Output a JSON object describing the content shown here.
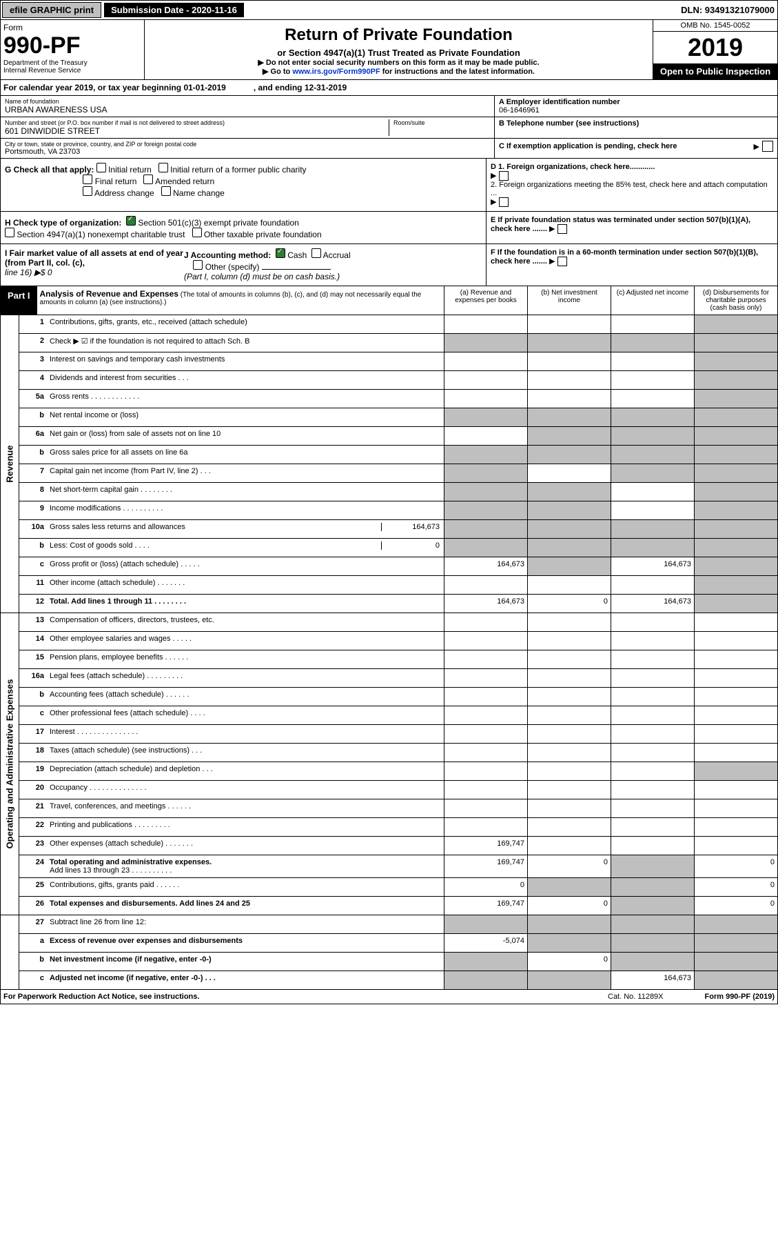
{
  "top": {
    "efile": "efile GRAPHIC print",
    "subdate_lbl": "Submission Date - 2020-11-16",
    "dln": "DLN: 93491321079000"
  },
  "hdr": {
    "form": "Form",
    "num": "990-PF",
    "dept": "Department of the Treasury",
    "irs": "Internal Revenue Service",
    "title": "Return of Private Foundation",
    "sub": "or Section 4947(a)(1) Trust Treated as Private Foundation",
    "note1": "▶ Do not enter social security numbers on this form as it may be made public.",
    "note2": "▶ Go to www.irs.gov/Form990PF for instructions and the latest information.",
    "link": "www.irs.gov/Form990PF",
    "omb": "OMB No. 1545-0052",
    "year": "2019",
    "open": "Open to Public Inspection"
  },
  "cal": {
    "left": "For calendar year 2019, or tax year beginning 01-01-2019",
    "right": ", and ending 12-31-2019"
  },
  "name": {
    "lbl": "Name of foundation",
    "val": "URBAN AWARENESS USA"
  },
  "addr": {
    "lbl": "Number and street (or P.O. box number if mail is not delivered to street address)",
    "val": "601 DINWIDDIE STREET",
    "room": "Room/suite"
  },
  "city": {
    "lbl": "City or town, state or province, country, and ZIP or foreign postal code",
    "val": "Portsmouth, VA  23703"
  },
  "ein": {
    "lbl": "A Employer identification number",
    "val": "06-1646961"
  },
  "tel": {
    "lbl": "B Telephone number (see instructions)"
  },
  "c": {
    "lbl": "C If exemption application is pending, check here"
  },
  "g": {
    "lbl": "G Check all that apply:",
    "opts": [
      "Initial return",
      "Initial return of a former public charity",
      "Final return",
      "Amended return",
      "Address change",
      "Name change"
    ]
  },
  "h": {
    "lbl": "H Check type of organization:",
    "o1": "Section 501(c)(3) exempt private foundation",
    "o2": "Section 4947(a)(1) nonexempt charitable trust",
    "o3": "Other taxable private foundation"
  },
  "d": {
    "d1": "D 1. Foreign organizations, check here............",
    "d2": "2. Foreign organizations meeting the 85% test, check here and attach computation ..."
  },
  "e": {
    "lbl": "E  If private foundation status was terminated under section 507(b)(1)(A), check here ......."
  },
  "i": {
    "lbl": "I Fair market value of all assets at end of year (from Part II, col. (c),",
    "line": "line 16) ▶$ 0"
  },
  "j": {
    "lbl": "J Accounting method:",
    "cash": "Cash",
    "accr": "Accrual",
    "other": "Other (specify)",
    "note": "(Part I, column (d) must be on cash basis.)"
  },
  "f": {
    "lbl": "F  If the foundation is in a 60-month termination under section 507(b)(1)(B), check here ......."
  },
  "p1": {
    "part": "Part I",
    "title": "Analysis of Revenue and Expenses",
    "note": "(The total of amounts in columns (b), (c), and (d) may not necessarily equal the amounts in column (a) (see instructions).)",
    "ca": "(a)   Revenue and expenses per books",
    "cb": "(b)  Net investment income",
    "cc": "(c)  Adjusted net income",
    "cd": "(d)  Disbursements for charitable purposes (cash basis only)"
  },
  "side": {
    "rev": "Revenue",
    "exp": "Operating and Administrative Expenses"
  },
  "rows": {
    "r1": {
      "n": "1",
      "d": "Contributions, gifts, grants, etc., received (attach schedule)"
    },
    "r2": {
      "n": "2",
      "d": "Check ▶ ☑ if the foundation is not required to attach Sch. B"
    },
    "r3": {
      "n": "3",
      "d": "Interest on savings and temporary cash investments"
    },
    "r4": {
      "n": "4",
      "d": "Dividends and interest from securities   .  .  ."
    },
    "r5a": {
      "n": "5a",
      "d": "Gross rents   .  .  .  .  .  .  .  .  .  .  .  ."
    },
    "r5b": {
      "n": "b",
      "d": "Net rental income or (loss)"
    },
    "r6a": {
      "n": "6a",
      "d": "Net gain or (loss) from sale of assets not on line 10"
    },
    "r6b": {
      "n": "b",
      "d": "Gross sales price for all assets on line 6a"
    },
    "r7": {
      "n": "7",
      "d": "Capital gain net income (from Part IV, line 2)   .  .  ."
    },
    "r8": {
      "n": "8",
      "d": "Net short-term capital gain   .  .  .  .  .  .  .  ."
    },
    "r9": {
      "n": "9",
      "d": "Income modifications  .  .  .  .  .  .  .  .  .  ."
    },
    "r10a": {
      "n": "10a",
      "d": "Gross sales less returns and allowances",
      "v": "164,673"
    },
    "r10b": {
      "n": "b",
      "d": "Less: Cost of goods sold   .  .  .  .",
      "v": "0"
    },
    "r10c": {
      "n": "c",
      "d": "Gross profit or (loss) (attach schedule)   .  .  .  .  .",
      "a": "164,673",
      "c": "164,673"
    },
    "r11": {
      "n": "11",
      "d": "Other income (attach schedule)   .  .  .  .  .  .  ."
    },
    "r12": {
      "n": "12",
      "d": "Total. Add lines 1 through 11   .  .  .  .  .  .  .  .",
      "a": "164,673",
      "b": "0",
      "c": "164,673"
    },
    "r13": {
      "n": "13",
      "d": "Compensation of officers, directors, trustees, etc."
    },
    "r14": {
      "n": "14",
      "d": "Other employee salaries and wages   .  .  .  .  ."
    },
    "r15": {
      "n": "15",
      "d": "Pension plans, employee benefits   .  .  .  .  .  ."
    },
    "r16a": {
      "n": "16a",
      "d": "Legal fees (attach schedule)  .  .  .  .  .  .  .  .  ."
    },
    "r16b": {
      "n": "b",
      "d": "Accounting fees (attach schedule)   .  .  .  .  .  ."
    },
    "r16c": {
      "n": "c",
      "d": "Other professional fees (attach schedule)   .  .  .  ."
    },
    "r17": {
      "n": "17",
      "d": "Interest   .  .  .  .  .  .  .  .  .  .  .  .  .  .  ."
    },
    "r18": {
      "n": "18",
      "d": "Taxes (attach schedule) (see instructions)   .  .  ."
    },
    "r19": {
      "n": "19",
      "d": "Depreciation (attach schedule) and depletion   .  .  ."
    },
    "r20": {
      "n": "20",
      "d": "Occupancy  .  .  .  .  .  .  .  .  .  .  .  .  .  ."
    },
    "r21": {
      "n": "21",
      "d": "Travel, conferences, and meetings   .  .  .  .  .  ."
    },
    "r22": {
      "n": "22",
      "d": "Printing and publications   .  .  .  .  .  .  .  .  ."
    },
    "r23": {
      "n": "23",
      "d": "Other expenses (attach schedule)   .  .  .  .  .  .  .",
      "a": "169,747"
    },
    "r24": {
      "n": "24",
      "d": "Total operating and administrative expenses.",
      "d2": "Add lines 13 through 23   .  .  .  .  .  .  .  .  .  .",
      "a": "169,747",
      "b": "0",
      "dd": "0"
    },
    "r25": {
      "n": "25",
      "d": "Contributions, gifts, grants paid   .  .  .  .  .  .",
      "a": "0",
      "dd": "0"
    },
    "r26": {
      "n": "26",
      "d": "Total expenses and disbursements. Add lines 24 and 25",
      "a": "169,747",
      "b": "0",
      "dd": "0"
    },
    "r27": {
      "n": "27",
      "d": "Subtract line 26 from line 12:"
    },
    "r27a": {
      "n": "a",
      "d": "Excess of revenue over expenses and disbursements",
      "a": "-5,074"
    },
    "r27b": {
      "n": "b",
      "d": "Net investment income (if negative, enter -0-)",
      "b": "0"
    },
    "r27c": {
      "n": "c",
      "d": "Adjusted net income (if negative, enter -0-)   .  .  .",
      "c": "164,673"
    }
  },
  "foot": {
    "l": "For Paperwork Reduction Act Notice, see instructions.",
    "cat": "Cat. No. 11289X",
    "r": "Form 990-PF (2019)"
  },
  "colors": {
    "grey": "#bfbfbf",
    "green": "#2e7d32",
    "link": "#0033cc"
  }
}
